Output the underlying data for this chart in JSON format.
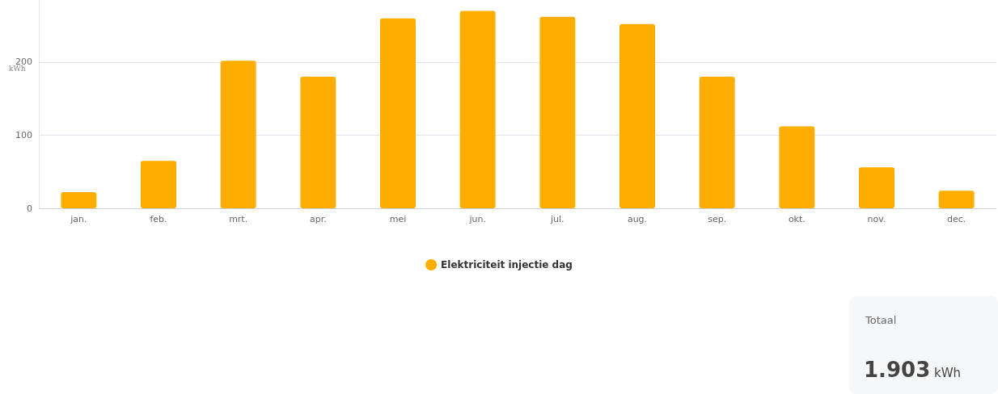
{
  "chart_data": {
    "type": "bar",
    "ylabel": "kWh",
    "categories": [
      "jan.",
      "feb.",
      "mrt.",
      "apr.",
      "mei",
      "jun.",
      "jul.",
      "aug.",
      "sep.",
      "okt.",
      "nov.",
      "dec."
    ],
    "series": [
      {
        "name": "Elektriciteit injectie dag",
        "color": "#ffae00",
        "values": [
          22,
          65,
          202,
          180,
          260,
          270,
          262,
          252,
          180,
          112,
          56,
          24
        ]
      }
    ],
    "ylim": [
      0,
      285
    ],
    "yticks": [
      0,
      100,
      200
    ],
    "grid": "y",
    "legend": "bottom",
    "marker": "circle",
    "annotations": [
      "Totaal",
      "1.903 kWh"
    ]
  }
}
